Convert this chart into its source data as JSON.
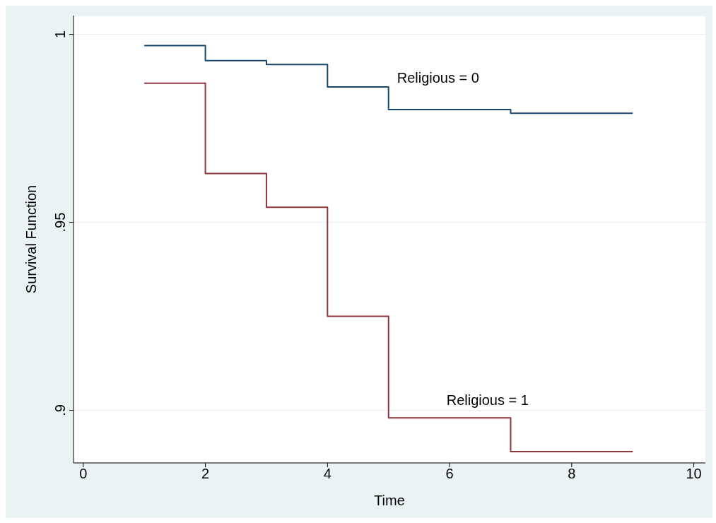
{
  "chart_data": {
    "type": "step",
    "xlabel": "Time",
    "ylabel": "Survival Function",
    "x": [
      1,
      2,
      3,
      4,
      5,
      7,
      9
    ],
    "series": [
      {
        "name": "Religious = 0",
        "color": "#1a476f",
        "values": [
          0.997,
          0.993,
          0.992,
          0.986,
          0.98,
          0.979,
          0.979
        ]
      },
      {
        "name": "Religious = 1",
        "color": "#90353b",
        "values": [
          0.987,
          0.963,
          0.954,
          0.925,
          0.898,
          0.889,
          0.889
        ]
      }
    ],
    "xlim": [
      -0.16,
      10.19
    ],
    "xticks": [
      0,
      2,
      4,
      6,
      8,
      10
    ],
    "ylim": [
      0.886,
      1.005
    ],
    "yticks": [
      {
        "value": 0.9,
        "label": ".9"
      },
      {
        "value": 0.95,
        "label": ".95"
      },
      {
        "value": 1,
        "label": "1"
      }
    ],
    "grid": "y",
    "legend": false,
    "marker": "none",
    "line_style": "solid"
  }
}
